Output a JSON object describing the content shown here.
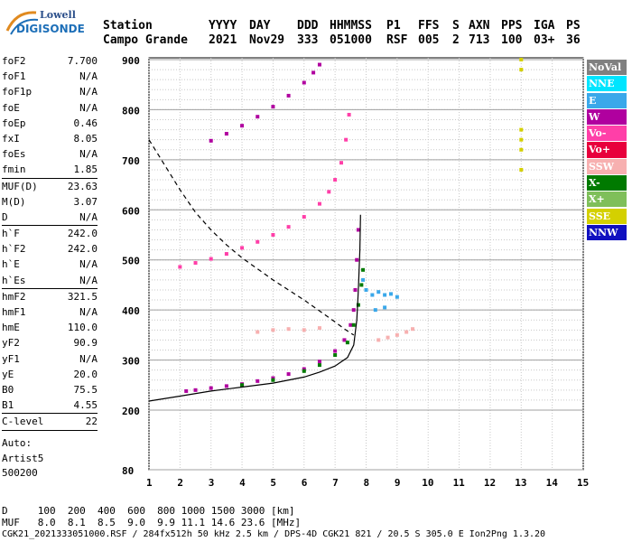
{
  "logo": {
    "line1": "Lowell",
    "line2": "DIGISONDE"
  },
  "header": {
    "labels": [
      "Station",
      "YYYY",
      "DAY",
      "DDD",
      "HHMMSS",
      "P1",
      "FFS",
      "S",
      "AXN",
      "PPS",
      "IGA",
      "PS"
    ],
    "values": [
      "Campo Grande",
      "2021",
      "Nov29",
      "333",
      "051000",
      "RSF",
      "005",
      "2",
      "713",
      "100",
      "03+",
      "36"
    ]
  },
  "params": {
    "group1": [
      {
        "k": "foF2",
        "v": "7.700"
      },
      {
        "k": "foF1",
        "v": "N/A"
      },
      {
        "k": "foF1p",
        "v": "N/A"
      },
      {
        "k": "foE",
        "v": "N/A"
      },
      {
        "k": "foEp",
        "v": "0.46"
      },
      {
        "k": "fxI",
        "v": "8.05"
      },
      {
        "k": "foEs",
        "v": "N/A"
      },
      {
        "k": "fmin",
        "v": "1.85"
      }
    ],
    "group2": [
      {
        "k": "MUF(D)",
        "v": "23.63"
      },
      {
        "k": "M(D)",
        "v": "3.07"
      },
      {
        "k": "D",
        "v": "N/A"
      }
    ],
    "group3": [
      {
        "k": "h`F",
        "v": "242.0"
      },
      {
        "k": "h`F2",
        "v": "242.0"
      },
      {
        "k": "h`E",
        "v": "N/A"
      },
      {
        "k": "h`Es",
        "v": "N/A"
      }
    ],
    "group4": [
      {
        "k": "hmF2",
        "v": "321.5"
      },
      {
        "k": "hmF1",
        "v": "N/A"
      },
      {
        "k": "hmE",
        "v": "110.0"
      },
      {
        "k": "yF2",
        "v": "90.9"
      },
      {
        "k": "yF1",
        "v": "N/A"
      },
      {
        "k": "yE",
        "v": "20.0"
      },
      {
        "k": "B0",
        "v": "75.5"
      },
      {
        "k": "B1",
        "v": "4.55"
      }
    ],
    "group5": [
      {
        "k": "C-level",
        "v": "22"
      }
    ]
  },
  "auto": {
    "line1": "Auto:",
    "line2": "Artist5",
    "line3": "500200"
  },
  "legend": [
    {
      "label": "NoVal",
      "color": "#808080"
    },
    {
      "label": "NNE",
      "color": "#00e5ff"
    },
    {
      "label": "E",
      "color": "#3aa8ea"
    },
    {
      "label": "W",
      "color": "#b0009f"
    },
    {
      "label": "Vo-",
      "color": "#ff3fa8"
    },
    {
      "label": "Vo+",
      "color": "#e8003c"
    },
    {
      "label": "SSW",
      "color": "#f7b0b0"
    },
    {
      "label": "X-",
      "color": "#007a00"
    },
    {
      "label": "X+",
      "color": "#7fbf5a"
    },
    {
      "label": "SSE",
      "color": "#d4d000"
    },
    {
      "label": "NNW",
      "color": "#1010c0"
    }
  ],
  "bottom": {
    "d_line": "D     100  200  400  600  800 1000 1500 3000 [km]",
    "muf_line": "MUF   8.0  8.1  8.5  9.0  9.9 11.1 14.6 23.6 [MHz]",
    "footer": "CGK21_2021333051000.RSF / 284fx512h 50 kHz 2.5 km / DPS-4D CGK21 821 / 20.5 S 305.0 E Ion2Png 1.3.20"
  },
  "chart_data": {
    "type": "scatter",
    "xlim": [
      1,
      15
    ],
    "ylim": [
      80,
      900
    ],
    "x_ticks": [
      1,
      2,
      3,
      4,
      5,
      6,
      7,
      8,
      9,
      10,
      11,
      12,
      13,
      14,
      15
    ],
    "y_ticks": [
      80,
      200,
      300,
      400,
      500,
      600,
      700,
      800,
      900
    ],
    "grid": true,
    "legend_position": "right",
    "series": [
      {
        "color": "#b0009f",
        "points": [
          [
            2.2,
            238
          ],
          [
            2.5,
            240
          ],
          [
            3.0,
            244
          ],
          [
            3.5,
            248
          ],
          [
            4.0,
            252
          ],
          [
            4.5,
            258
          ],
          [
            5.0,
            264
          ],
          [
            5.5,
            272
          ],
          [
            6.0,
            282
          ],
          [
            6.5,
            297
          ],
          [
            7.0,
            318
          ],
          [
            7.3,
            340
          ],
          [
            7.5,
            370
          ],
          [
            7.6,
            400
          ],
          [
            7.65,
            440
          ],
          [
            7.7,
            500
          ],
          [
            7.75,
            560
          ]
        ]
      },
      {
        "color": "#007a00",
        "points": [
          [
            4.0,
            250
          ],
          [
            5.0,
            260
          ],
          [
            6.0,
            278
          ],
          [
            6.5,
            290
          ],
          [
            7.0,
            310
          ],
          [
            7.4,
            335
          ],
          [
            7.6,
            370
          ],
          [
            7.75,
            410
          ],
          [
            7.85,
            450
          ],
          [
            7.9,
            480
          ]
        ]
      },
      {
        "color": "#ff3fa8",
        "points": [
          [
            2.0,
            486
          ],
          [
            2.5,
            494
          ],
          [
            3.0,
            502
          ],
          [
            3.5,
            512
          ],
          [
            4.0,
            524
          ],
          [
            4.5,
            536
          ],
          [
            5.0,
            550
          ],
          [
            5.5,
            566
          ],
          [
            6.0,
            586
          ],
          [
            6.5,
            612
          ],
          [
            6.8,
            636
          ],
          [
            7.0,
            660
          ],
          [
            7.2,
            694
          ],
          [
            7.35,
            740
          ],
          [
            7.45,
            790
          ]
        ]
      },
      {
        "color": "#b0009f",
        "points": [
          [
            3.0,
            738
          ],
          [
            3.5,
            752
          ],
          [
            4.0,
            768
          ],
          [
            4.5,
            786
          ],
          [
            5.0,
            806
          ],
          [
            5.5,
            828
          ],
          [
            6.0,
            854
          ],
          [
            6.3,
            874
          ],
          [
            6.5,
            890
          ]
        ]
      },
      {
        "color": "#3aa8ea",
        "points": [
          [
            7.9,
            460
          ],
          [
            8.0,
            440
          ],
          [
            8.2,
            430
          ],
          [
            8.4,
            436
          ],
          [
            8.6,
            430
          ],
          [
            8.8,
            432
          ],
          [
            9.0,
            426
          ],
          [
            8.3,
            400
          ],
          [
            8.6,
            405
          ]
        ]
      },
      {
        "color": "#f7b0b0",
        "points": [
          [
            8.4,
            340
          ],
          [
            8.7,
            345
          ],
          [
            9.0,
            350
          ],
          [
            9.3,
            356
          ],
          [
            9.5,
            362
          ],
          [
            4.5,
            356
          ],
          [
            5.0,
            360
          ],
          [
            5.5,
            362
          ],
          [
            6.0,
            360
          ],
          [
            6.5,
            364
          ]
        ]
      },
      {
        "color": "#d4d000",
        "points": [
          [
            13.0,
            680
          ],
          [
            13.0,
            720
          ],
          [
            13.0,
            740
          ],
          [
            13.0,
            760
          ],
          [
            13.0,
            880
          ],
          [
            13.0,
            900
          ]
        ]
      }
    ],
    "curves": [
      {
        "style": "solid",
        "points": [
          [
            1.0,
            218
          ],
          [
            2.0,
            228
          ],
          [
            3.0,
            238
          ],
          [
            4.0,
            246
          ],
          [
            5.0,
            254
          ],
          [
            6.0,
            266
          ],
          [
            6.5,
            276
          ],
          [
            7.0,
            288
          ],
          [
            7.4,
            305
          ],
          [
            7.6,
            330
          ],
          [
            7.7,
            380
          ],
          [
            7.75,
            440
          ],
          [
            7.8,
            520
          ],
          [
            7.82,
            590
          ]
        ]
      },
      {
        "style": "dashed",
        "points": [
          [
            1.0,
            740
          ],
          [
            1.5,
            690
          ],
          [
            2.0,
            640
          ],
          [
            2.5,
            595
          ],
          [
            3.0,
            560
          ],
          [
            3.5,
            530
          ],
          [
            4.0,
            504
          ],
          [
            4.5,
            482
          ],
          [
            5.0,
            460
          ],
          [
            5.5,
            440
          ],
          [
            6.0,
            420
          ],
          [
            6.5,
            398
          ],
          [
            7.0,
            376
          ],
          [
            7.3,
            362
          ],
          [
            7.6,
            350
          ]
        ]
      }
    ]
  }
}
